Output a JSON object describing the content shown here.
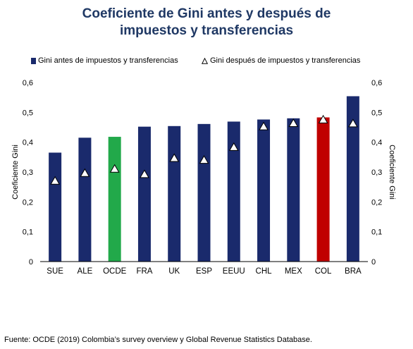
{
  "title_line1": "Coeficiente de Gini antes y después de",
  "title_line2": "impuestos y transferencias",
  "source": "Fuente: OCDE (2019) Colombia’s survey overview y Global Revenue Statistics Database.",
  "colors": {
    "before_default": "#1a2a6c",
    "before_ocde": "#22a94a",
    "before_col": "#c00000",
    "title": "#1f3864"
  },
  "chart_data": {
    "type": "bar",
    "title": "Coeficiente de Gini antes y después de impuestos y transferencias",
    "ylabel": "Coeficiente Gini",
    "ylabel_right": "Coeficiente Gini",
    "ylim": [
      0,
      0.6
    ],
    "yticks": [
      "0",
      "0,1",
      "0,2",
      "0,3",
      "0,4",
      "0,5",
      "0,6"
    ],
    "grid": false,
    "legend_position": "top",
    "categories": [
      "SUE",
      "ALE",
      "OCDE",
      "FRA",
      "UK",
      "ESP",
      "EEUU",
      "CHL",
      "MEX",
      "COL",
      "BRA"
    ],
    "series": [
      {
        "name": "Gini antes de impuestos y transferencias",
        "kind": "bar",
        "values": [
          0.365,
          0.415,
          0.418,
          0.452,
          0.454,
          0.461,
          0.469,
          0.476,
          0.48,
          0.483,
          0.554
        ]
      },
      {
        "name": "Gini después de impuestos y transferencias",
        "kind": "triangle-marker",
        "values": [
          0.27,
          0.296,
          0.31,
          0.292,
          0.346,
          0.34,
          0.383,
          0.452,
          0.463,
          0.475,
          0.462
        ]
      }
    ]
  }
}
